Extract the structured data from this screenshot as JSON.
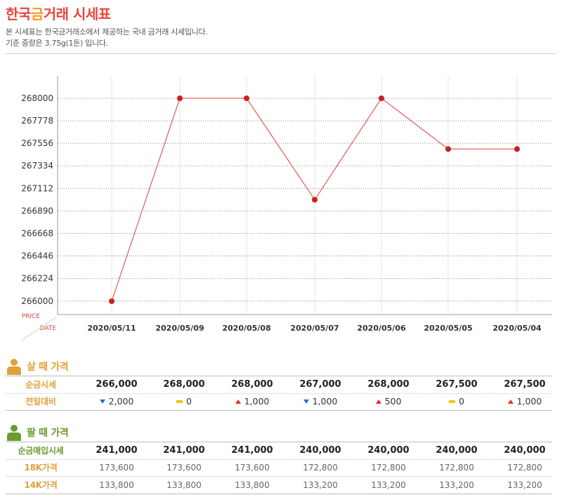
{
  "header": {
    "title_part1": "한국",
    "title_part2": "금",
    "title_part3": "거래 시세표",
    "desc1": "본 시세표는 한국금거래소에서 제공하는 국내 금거래 시세입니다.",
    "desc2": "기준 중량은 3.75g(1돈) 입니다."
  },
  "chart_data": {
    "type": "line",
    "title": "",
    "ylabel": "PRICE",
    "xlabel": "DATE",
    "x": [
      "2020/05/11",
      "2020/05/09",
      "2020/05/08",
      "2020/05/07",
      "2020/05/06",
      "2020/05/05",
      "2020/05/04"
    ],
    "y_ticks": [
      268000,
      267778,
      267556,
      267334,
      267112,
      266890,
      266668,
      266446,
      266224,
      266000
    ],
    "ylim": [
      265889,
      268111
    ],
    "grid": true,
    "series": [
      {
        "values": [
          266000,
          268000,
          268000,
          267000,
          268000,
          267500,
          267500
        ]
      }
    ],
    "colors": {
      "line": "#e06666",
      "marker": "#cc1f1f",
      "axis_label": "#e8453c"
    }
  },
  "buy": {
    "title": "살 때 가격",
    "rows": [
      {
        "label": "순금시세",
        "values": [
          "266,000",
          "268,000",
          "268,000",
          "267,000",
          "268,000",
          "267,500",
          "267,500"
        ]
      },
      {
        "label": "전일대비",
        "changes": [
          {
            "dir": "down",
            "text": "2,000"
          },
          {
            "dir": "flat",
            "text": "0"
          },
          {
            "dir": "up",
            "text": "1,000"
          },
          {
            "dir": "down",
            "text": "1,000"
          },
          {
            "dir": "up",
            "text": "500"
          },
          {
            "dir": "flat",
            "text": "0"
          },
          {
            "dir": "up",
            "text": "1,000"
          }
        ]
      }
    ]
  },
  "sell": {
    "title": "팔 때 가격",
    "rows": [
      {
        "label": "순금매입시세",
        "values": [
          "241,000",
          "241,000",
          "241,000",
          "240,000",
          "240,000",
          "240,000",
          "240,000"
        ]
      },
      {
        "label": "18K가격",
        "values": [
          "173,600",
          "173,600",
          "173,600",
          "172,800",
          "172,800",
          "172,800",
          "172,800"
        ]
      },
      {
        "label": "14K가격",
        "values": [
          "133,800",
          "133,800",
          "133,800",
          "133,200",
          "133,200",
          "133,200",
          "133,200"
        ]
      }
    ]
  },
  "colors": {
    "buy_accent": "#e2a03c",
    "sell_accent": "#6b9b2f",
    "up": "#e52b2b",
    "down": "#2d6bd6",
    "flat": "#f0c419"
  }
}
